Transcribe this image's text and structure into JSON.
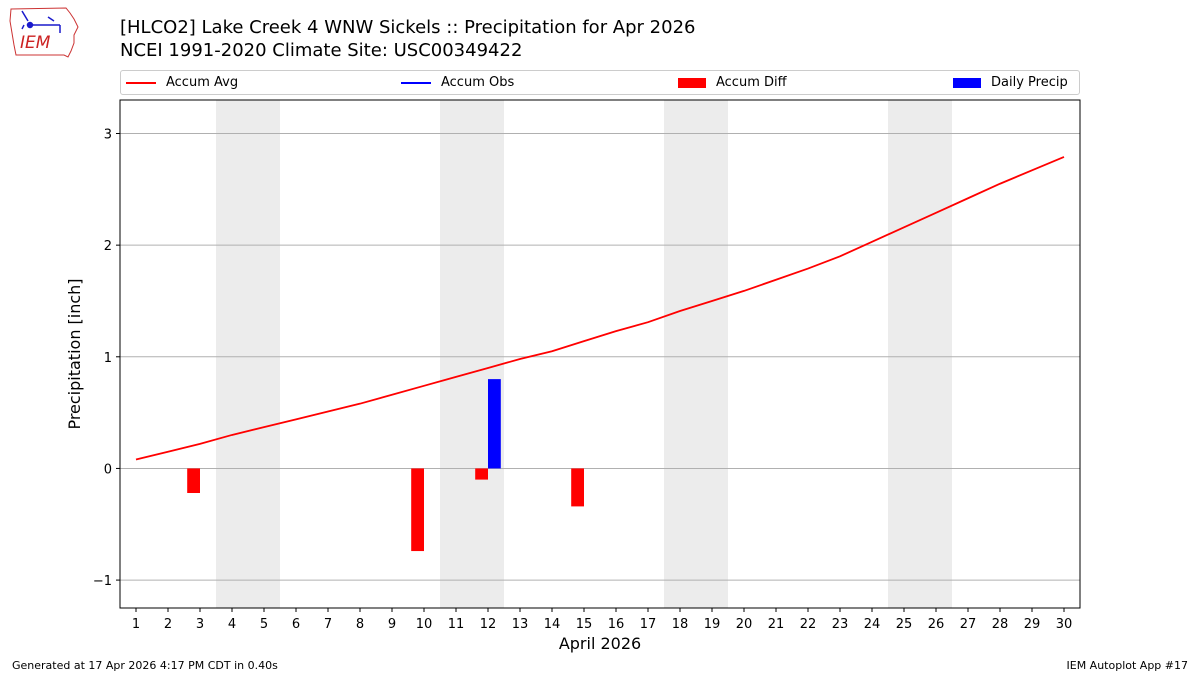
{
  "chart_data": {
    "type": "bar+line",
    "title": "[HLCO2] Lake Creek 4 WNW Sickels :: Precipitation for Apr 2026",
    "subtitle": "NCEI 1991-2020 Climate Site: USC00349422",
    "xlabel": "April 2026",
    "ylabel": "Precipitation [inch]",
    "ylim": [
      -1.25,
      3.3
    ],
    "xlim": [
      0.5,
      30.5
    ],
    "yticks": [
      -1,
      0,
      1,
      2,
      3
    ],
    "ytick_labels": [
      "−1",
      "0",
      "1",
      "2",
      "3"
    ],
    "days": [
      1,
      2,
      3,
      4,
      5,
      6,
      7,
      8,
      9,
      10,
      11,
      12,
      13,
      14,
      15,
      16,
      17,
      18,
      19,
      20,
      21,
      22,
      23,
      24,
      25,
      26,
      27,
      28,
      29,
      30
    ],
    "weekend_bands": [
      [
        3.5,
        5.5
      ],
      [
        10.5,
        12.5
      ],
      [
        17.5,
        19.5
      ],
      [
        24.5,
        26.5
      ]
    ],
    "grid": true,
    "series": [
      {
        "name": "Accum Avg",
        "kind": "line",
        "color": "#ff0000",
        "values": [
          0.08,
          0.15,
          0.22,
          0.3,
          0.37,
          0.44,
          0.51,
          0.58,
          0.66,
          0.74,
          0.82,
          0.9,
          0.98,
          1.05,
          1.14,
          1.23,
          1.31,
          1.41,
          1.5,
          1.59,
          1.69,
          1.79,
          1.9,
          2.03,
          2.16,
          2.29,
          2.42,
          2.55,
          2.67,
          2.79
        ]
      },
      {
        "name": "Accum Obs",
        "kind": "line",
        "color": "#0000ff",
        "values": []
      },
      {
        "name": "Accum Diff",
        "kind": "bar",
        "color": "#ff0000",
        "points": [
          {
            "day": 3,
            "value": -0.22
          },
          {
            "day": 10,
            "value": -0.74
          },
          {
            "day": 12,
            "value": -0.1
          },
          {
            "day": 15,
            "value": -0.34
          }
        ]
      },
      {
        "name": "Daily Precip",
        "kind": "bar",
        "color": "#0000ff",
        "points": [
          {
            "day": 12,
            "value": 0.8
          }
        ]
      }
    ],
    "legend_position": "top"
  },
  "logo": {
    "text": "IEM",
    "color": "#cc2222"
  },
  "footer": {
    "left": "Generated at 17 Apr 2026 4:17 PM CDT in 0.40s",
    "right": "IEM Autoplot App #17"
  }
}
